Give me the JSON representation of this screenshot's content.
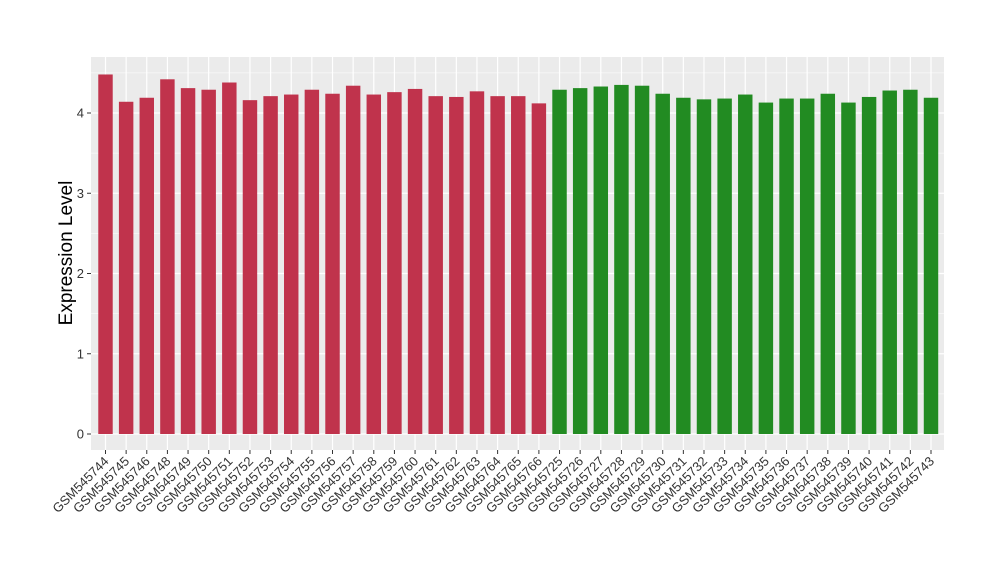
{
  "chart_data": {
    "type": "bar",
    "title": "",
    "xlabel": "",
    "ylabel": "Expression Level",
    "ylim": [
      0,
      4.6
    ],
    "yticks": [
      0,
      1,
      2,
      3,
      4
    ],
    "grid": true,
    "legend": "none",
    "colors": {
      "group1": "#c0334c",
      "group2": "#228b22",
      "panel": "#ebebeb",
      "grid": "#ffffff"
    },
    "categories": [
      "GSM545744",
      "GSM545745",
      "GSM545746",
      "GSM545748",
      "GSM545749",
      "GSM545750",
      "GSM545751",
      "GSM545752",
      "GSM545753",
      "GSM545754",
      "GSM545755",
      "GSM545756",
      "GSM545757",
      "GSM545758",
      "GSM545759",
      "GSM545760",
      "GSM545761",
      "GSM545762",
      "GSM545763",
      "GSM545764",
      "GSM545765",
      "GSM545766",
      "GSM545725",
      "GSM545726",
      "GSM545727",
      "GSM545728",
      "GSM545729",
      "GSM545730",
      "GSM545731",
      "GSM545732",
      "GSM545733",
      "GSM545734",
      "GSM545735",
      "GSM545736",
      "GSM545737",
      "GSM545738",
      "GSM545739",
      "GSM545740",
      "GSM545741",
      "GSM545742",
      "GSM545743"
    ],
    "values": [
      4.48,
      4.14,
      4.19,
      4.42,
      4.31,
      4.29,
      4.38,
      4.16,
      4.21,
      4.23,
      4.29,
      4.24,
      4.34,
      4.23,
      4.26,
      4.3,
      4.21,
      4.2,
      4.27,
      4.21,
      4.21,
      4.12,
      4.29,
      4.31,
      4.33,
      4.35,
      4.34,
      4.24,
      4.19,
      4.17,
      4.18,
      4.23,
      4.13,
      4.18,
      4.18,
      4.24,
      4.13,
      4.2,
      4.28,
      4.29,
      4.19
    ],
    "groups": [
      1,
      1,
      1,
      1,
      1,
      1,
      1,
      1,
      1,
      1,
      1,
      1,
      1,
      1,
      1,
      1,
      1,
      1,
      1,
      1,
      1,
      1,
      2,
      2,
      2,
      2,
      2,
      2,
      2,
      2,
      2,
      2,
      2,
      2,
      2,
      2,
      2,
      2,
      2,
      2,
      2
    ]
  }
}
